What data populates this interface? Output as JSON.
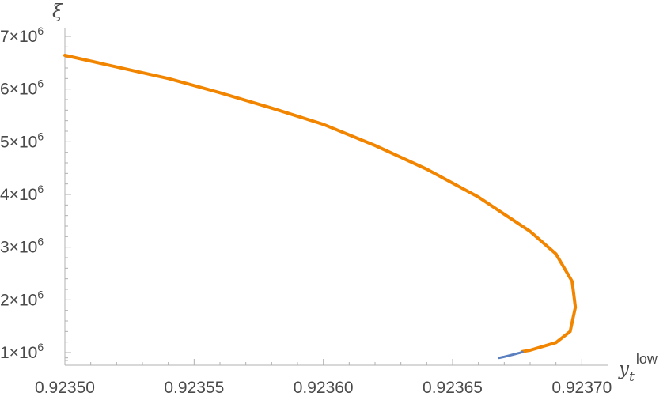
{
  "chart_data": {
    "type": "line",
    "title": "",
    "xlabel": {
      "main": "y",
      "sub": "t",
      "sup": "low"
    },
    "ylabel": "ξ",
    "xlim": [
      2.355,
      0.9237
    ],
    "ylim": [
      800000,
      7000000
    ],
    "x_ticks": [
      {
        "value": 0.9235,
        "label": "0.92350"
      },
      {
        "value": 0.92355,
        "label": "0.92355"
      },
      {
        "value": 0.9236,
        "label": "0.92360"
      },
      {
        "value": 0.92365,
        "label": "0.92365"
      },
      {
        "value": 0.9237,
        "label": "0.92370"
      }
    ],
    "y_ticks": [
      {
        "value": 1000000,
        "mantissa": "1",
        "exp": "6"
      },
      {
        "value": 2000000,
        "mantissa": "2",
        "exp": "6"
      },
      {
        "value": 3000000,
        "mantissa": "3",
        "exp": "6"
      },
      {
        "value": 4000000,
        "mantissa": "4",
        "exp": "6"
      },
      {
        "value": 5000000,
        "mantissa": "5",
        "exp": "6"
      },
      {
        "value": 6000000,
        "mantissa": "6",
        "exp": "6"
      },
      {
        "value": 7000000,
        "mantissa": "7",
        "exp": "6"
      }
    ],
    "grid": false,
    "series": [
      {
        "color": "#f28500",
        "points": [
          [
            0.9235,
            6640000
          ],
          [
            0.92352,
            6420000
          ],
          [
            0.92354,
            6200000
          ],
          [
            0.92356,
            5930000
          ],
          [
            0.92358,
            5640000
          ],
          [
            0.9236,
            5330000
          ],
          [
            0.92362,
            4930000
          ],
          [
            0.92364,
            4480000
          ],
          [
            0.92366,
            3950000
          ],
          [
            0.92368,
            3300000
          ],
          [
            0.92369,
            2870000
          ],
          [
            0.92369625,
            2350000
          ],
          [
            0.9236975,
            1860000
          ],
          [
            0.9236955,
            1400000
          ],
          [
            0.92369,
            1190000
          ],
          [
            0.92368,
            1045000
          ],
          [
            0.923677,
            1020000
          ]
        ]
      },
      {
        "color": "#5b7fbf",
        "points": [
          [
            0.923668,
            900000
          ],
          [
            0.92367,
            920000
          ],
          [
            0.923672,
            945000
          ],
          [
            0.923674,
            970000
          ],
          [
            0.923676,
            995000
          ],
          [
            0.923677,
            1010000
          ]
        ]
      }
    ]
  }
}
